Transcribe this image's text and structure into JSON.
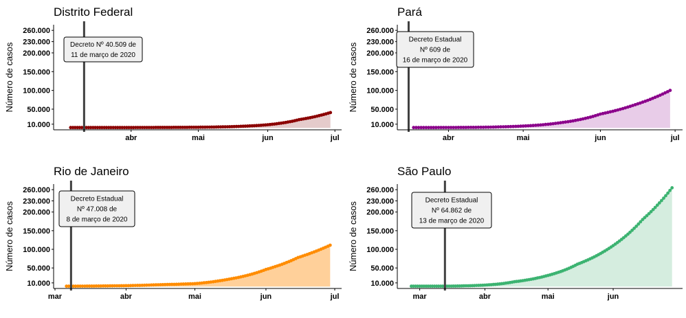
{
  "chart_data": [
    {
      "type": "area",
      "title": "Distrito Federal",
      "ylabel": "Número de casos",
      "color": "#8B0000",
      "fill": "#E5CBCB",
      "yticks": [
        10000,
        50000,
        100000,
        150000,
        200000,
        230000,
        260000
      ],
      "ytick_labels": [
        "10.000",
        "50.000",
        "100.000",
        "150.000",
        "200.000",
        "230.000",
        "260.000"
      ],
      "ylim": [
        -5000,
        275000
      ],
      "xticks": [
        "2020-04-01",
        "2020-05-01",
        "2020-06-01",
        "2020-07-01"
      ],
      "xtick_labels": [
        "abr",
        "mai",
        "jun",
        "jul"
      ],
      "xlim": [
        "2020-02-27",
        "2020-07-04"
      ],
      "decree_date": "2020-03-11",
      "annotation": [
        "Decreto Nº 40.509 de",
        "11 de março de 2020"
      ],
      "x": [
        "2020-03-05",
        "2020-04-01",
        "2020-05-01",
        "2020-05-15",
        "2020-06-01",
        "2020-06-15",
        "2020-06-29"
      ],
      "y": [
        1000,
        1100,
        1800,
        3200,
        8500,
        22000,
        41000
      ]
    },
    {
      "type": "area",
      "title": "Pará",
      "ylabel": "Número de casos",
      "color": "#8B008B",
      "fill": "#E8CCE8",
      "yticks": [
        10000,
        50000,
        100000,
        150000,
        200000,
        230000,
        260000
      ],
      "ytick_labels": [
        "10.000",
        "50.000",
        "100.000",
        "150.000",
        "200.000",
        "230.000",
        "260.000"
      ],
      "ylim": [
        -5000,
        275000
      ],
      "xticks": [
        "2020-04-01",
        "2020-05-01",
        "2020-06-01",
        "2020-07-01"
      ],
      "xtick_labels": [
        "abr",
        "mai",
        "jun",
        "jul"
      ],
      "xlim": [
        "2020-03-12",
        "2020-07-04"
      ],
      "decree_date": "2020-03-16",
      "annotation": [
        "Decreto Estadual",
        "Nº 609 de",
        "16 de março de 2020"
      ],
      "x": [
        "2020-03-18",
        "2020-04-01",
        "2020-04-15",
        "2020-05-01",
        "2020-05-15",
        "2020-06-01",
        "2020-06-15",
        "2020-06-29"
      ],
      "y": [
        1000,
        1200,
        1800,
        5000,
        13000,
        37000,
        62000,
        100000
      ]
    },
    {
      "type": "area",
      "title": "Rio de Janeiro",
      "ylabel": "Número de casos",
      "color": "#FF8C00",
      "fill": "#FFD09A",
      "yticks": [
        10000,
        50000,
        100000,
        150000,
        200000,
        230000,
        260000
      ],
      "ytick_labels": [
        "10.000",
        "50.000",
        "100.000",
        "150.000",
        "200.000",
        "230.000",
        "260.000"
      ],
      "ylim": [
        -5000,
        275000
      ],
      "xticks": [
        "2020-03-01",
        "2020-04-01",
        "2020-05-01",
        "2020-06-01",
        "2020-07-01"
      ],
      "xtick_labels": [
        "mar",
        "abr",
        "mai",
        "jun",
        "jul"
      ],
      "xlim": [
        "2020-03-01",
        "2020-07-04"
      ],
      "decree_date": "2020-03-08",
      "annotation": [
        "Decreto Estadual",
        "Nº 47.008 de",
        "8 de março de 2020"
      ],
      "x": [
        "2020-03-06",
        "2020-04-01",
        "2020-04-15",
        "2020-05-01",
        "2020-05-15",
        "2020-06-01",
        "2020-06-15",
        "2020-06-29"
      ],
      "y": [
        1000,
        2500,
        5000,
        8000,
        19000,
        46000,
        78000,
        111000
      ]
    },
    {
      "type": "area",
      "title": "São Paulo",
      "ylabel": "Número de casos",
      "color": "#3CB371",
      "fill": "#D5EDDF",
      "yticks": [
        10000,
        50000,
        100000,
        150000,
        200000,
        230000,
        260000
      ],
      "ytick_labels": [
        "10.000",
        "50.000",
        "100.000",
        "150.000",
        "200.000",
        "230.000",
        "260.000"
      ],
      "ylim": [
        -5000,
        275000
      ],
      "xticks": [
        "2020-03-01",
        "2020-04-01",
        "2020-05-01",
        "2020-06-01"
      ],
      "xtick_labels": [
        "mar",
        "abr",
        "mai",
        "jun"
      ],
      "xlim": [
        "2020-02-20",
        "2020-07-04"
      ],
      "decree_date": "2020-03-13",
      "annotation": [
        "Decreto Estadual",
        "Nº 64.862 de",
        "13 de março de 2020"
      ],
      "x": [
        "2020-02-26",
        "2020-03-15",
        "2020-04-01",
        "2020-04-15",
        "2020-05-01",
        "2020-05-15",
        "2020-06-01",
        "2020-06-15",
        "2020-06-29"
      ],
      "y": [
        1000,
        1200,
        4000,
        13000,
        30000,
        60000,
        110000,
        180000,
        265000
      ]
    }
  ]
}
